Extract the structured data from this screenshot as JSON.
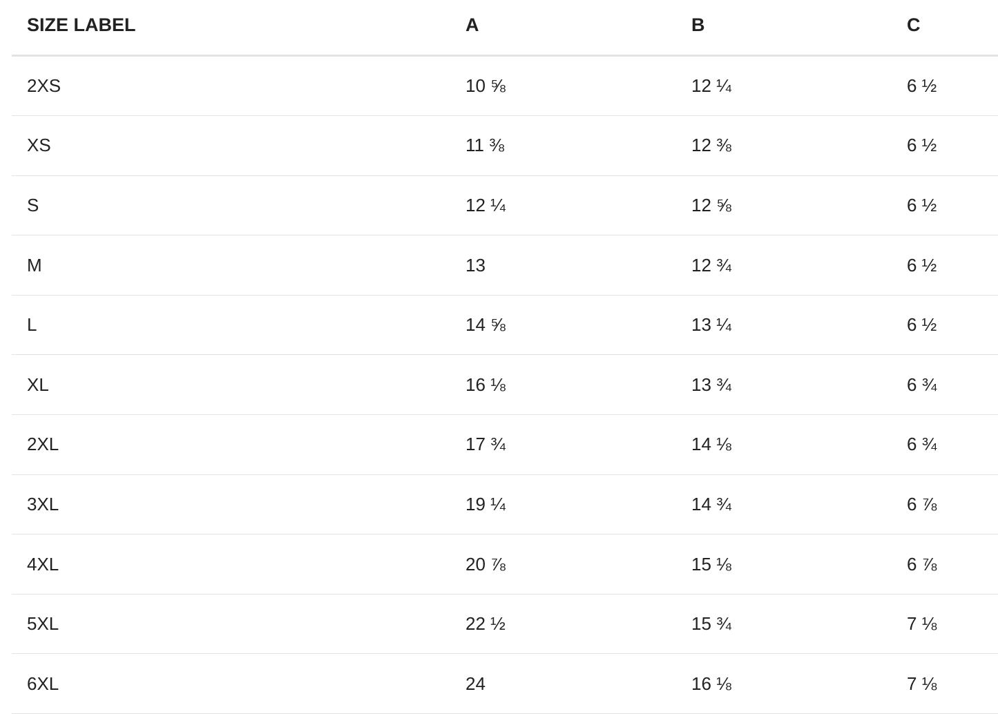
{
  "table": {
    "header": [
      "SIZE LABEL",
      "A",
      "B",
      "C"
    ],
    "rows": [
      [
        "2XS",
        "10 ⅝",
        "12 ¼",
        "6 ½"
      ],
      [
        "XS",
        "11 ⅜",
        "12 ⅜",
        "6 ½"
      ],
      [
        "S",
        "12 ¼",
        "12 ⅝",
        "6 ½"
      ],
      [
        "M",
        "13",
        "12 ¾",
        "6 ½"
      ],
      [
        "L",
        "14 ⅝",
        "13 ¼",
        "6 ½"
      ],
      [
        "XL",
        "16 ⅛",
        "13 ¾",
        "6 ¾"
      ],
      [
        "2XL",
        "17 ¾",
        "14 ⅛",
        "6 ¾"
      ],
      [
        "3XL",
        "19 ¼",
        "14 ¾",
        "6 ⅞"
      ],
      [
        "4XL",
        "20 ⅞",
        "15 ⅛",
        "6 ⅞"
      ],
      [
        "5XL",
        "22 ½",
        "15 ¾",
        "7 ⅛"
      ],
      [
        "6XL",
        "24",
        "16 ⅛",
        "7 ⅛"
      ]
    ]
  }
}
